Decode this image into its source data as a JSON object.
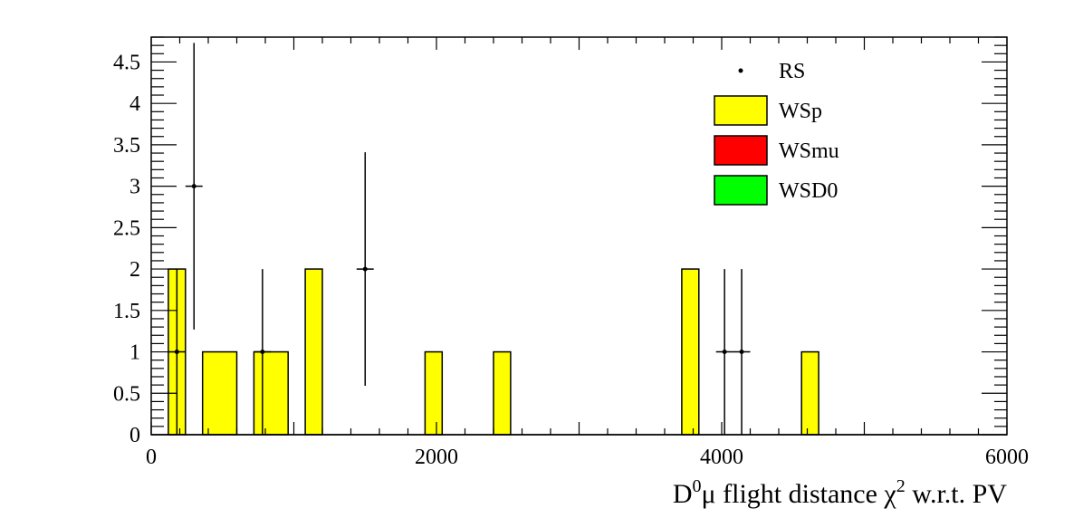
{
  "chart_data": {
    "type": "histogram",
    "x_title_parts": [
      "D",
      "0",
      "μ flight distance ",
      "χ",
      "2",
      " w.r.t. PV"
    ],
    "xlim": [
      0,
      6000
    ],
    "ylim": [
      0,
      4.8
    ],
    "x_ticks": [
      0,
      2000,
      4000,
      6000
    ],
    "x_tick_labels": [
      "0",
      "2000",
      "4000",
      "6000"
    ],
    "y_ticks": [
      0,
      0.5,
      1,
      1.5,
      2,
      2.5,
      3,
      3.5,
      4,
      4.5
    ],
    "y_tick_labels": [
      "0",
      "0.5",
      "1",
      "1.5",
      "2",
      "2.5",
      "3",
      "3.5",
      "4",
      "4.5"
    ],
    "bin_width": 120,
    "legend": {
      "position": "top-right",
      "entries": [
        {
          "label": "RS",
          "style": "marker"
        },
        {
          "label": "WSp",
          "style": "fill",
          "color": "#ffff00"
        },
        {
          "label": "WSmu",
          "style": "fill",
          "color": "#ff0000"
        },
        {
          "label": "WSD0",
          "style": "fill",
          "color": "#00ff00"
        }
      ]
    },
    "histogram": {
      "name": "WSp",
      "color": "#ffff00",
      "bins": [
        {
          "x_low": 120,
          "x_high": 240,
          "value": 2
        },
        {
          "x_low": 360,
          "x_high": 600,
          "value": 1
        },
        {
          "x_low": 720,
          "x_high": 960,
          "value": 1
        },
        {
          "x_low": 1080,
          "x_high": 1200,
          "value": 2
        },
        {
          "x_low": 1920,
          "x_high": 2040,
          "value": 1
        },
        {
          "x_low": 2400,
          "x_high": 2520,
          "value": 1
        },
        {
          "x_low": 3720,
          "x_high": 3840,
          "value": 2
        },
        {
          "x_low": 4560,
          "x_high": 4680,
          "value": 1
        }
      ]
    },
    "points": {
      "name": "RS",
      "values": [
        {
          "x": 180,
          "y": 1,
          "err_low": 1,
          "err_high": 1
        },
        {
          "x": 300,
          "y": 3,
          "err_low": 1.73,
          "err_high": 1.73
        },
        {
          "x": 780,
          "y": 1,
          "err_low": 1,
          "err_high": 1
        },
        {
          "x": 1500,
          "y": 2,
          "err_low": 1.41,
          "err_high": 1.41
        },
        {
          "x": 4020,
          "y": 1,
          "err_low": 1,
          "err_high": 1
        },
        {
          "x": 4140,
          "y": 1,
          "err_low": 1,
          "err_high": 1
        }
      ]
    }
  }
}
